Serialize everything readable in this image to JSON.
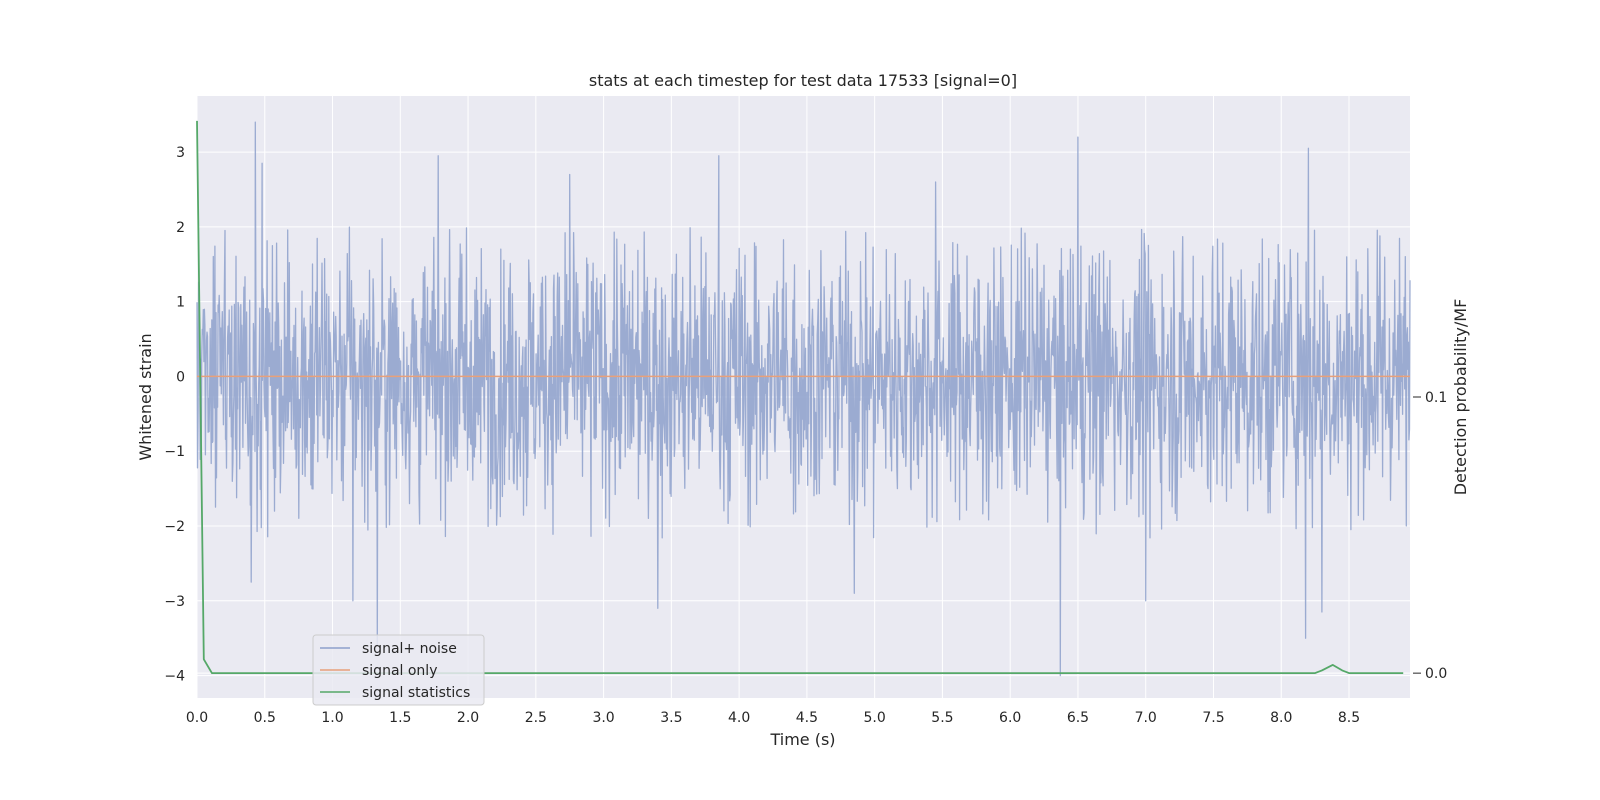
{
  "chart_data": {
    "type": "line",
    "title": "stats at each timestep for test data 17533 [signal=0]",
    "xlabel": "Time (s)",
    "ylabel": "Whitened strain",
    "y2label": "Detection probability/MF",
    "xlim": [
      0.0,
      8.95
    ],
    "ylim": [
      -4.3,
      3.75
    ],
    "y2lim": [
      -0.009,
      0.209
    ],
    "x_ticks": [
      "0.0",
      "0.5",
      "1.0",
      "1.5",
      "2.0",
      "2.5",
      "3.0",
      "3.5",
      "4.0",
      "4.5",
      "5.0",
      "5.5",
      "6.0",
      "6.5",
      "7.0",
      "7.5",
      "8.0",
      "8.5"
    ],
    "y_ticks": [
      "3",
      "2",
      "1",
      "0",
      "−1",
      "−2",
      "−3",
      "−4"
    ],
    "y2_ticks": [
      "0.1",
      "0.0"
    ],
    "grid": true,
    "legend_position": "lower-left",
    "series": [
      {
        "name": "signal+ noise",
        "color": "#8da0cb",
        "kind": "noise",
        "envelope": {
          "typical_max": 2.0,
          "typical_min": -2.2
        },
        "peaks": [
          [
            0.43,
            3.4
          ],
          [
            0.48,
            2.85
          ],
          [
            1.78,
            2.95
          ],
          [
            3.85,
            2.95
          ],
          [
            6.5,
            3.2
          ],
          [
            8.2,
            3.05
          ],
          [
            5.45,
            2.6
          ],
          [
            2.75,
            2.7
          ]
        ],
        "troughs": [
          [
            1.33,
            -3.6
          ],
          [
            1.15,
            -3.0
          ],
          [
            3.4,
            -3.1
          ],
          [
            6.37,
            -4.0
          ],
          [
            8.18,
            -3.5
          ],
          [
            8.3,
            -3.15
          ],
          [
            7.0,
            -3.0
          ],
          [
            4.85,
            -2.9
          ],
          [
            0.4,
            -2.75
          ]
        ]
      },
      {
        "name": "signal only",
        "color": "#e8a07a",
        "values": [
          [
            0.0,
            0.0
          ],
          [
            8.95,
            0.0
          ]
        ]
      },
      {
        "name": "signal statistics",
        "color": "#55a868",
        "axis": "right",
        "values": [
          [
            0.0,
            0.2
          ],
          [
            0.05,
            0.005
          ],
          [
            0.11,
            0.0
          ],
          [
            8.25,
            0.0
          ],
          [
            8.3,
            0.001
          ],
          [
            8.38,
            0.003
          ],
          [
            8.45,
            0.001
          ],
          [
            8.5,
            0.0
          ],
          [
            8.9,
            0.0
          ]
        ]
      }
    ]
  }
}
